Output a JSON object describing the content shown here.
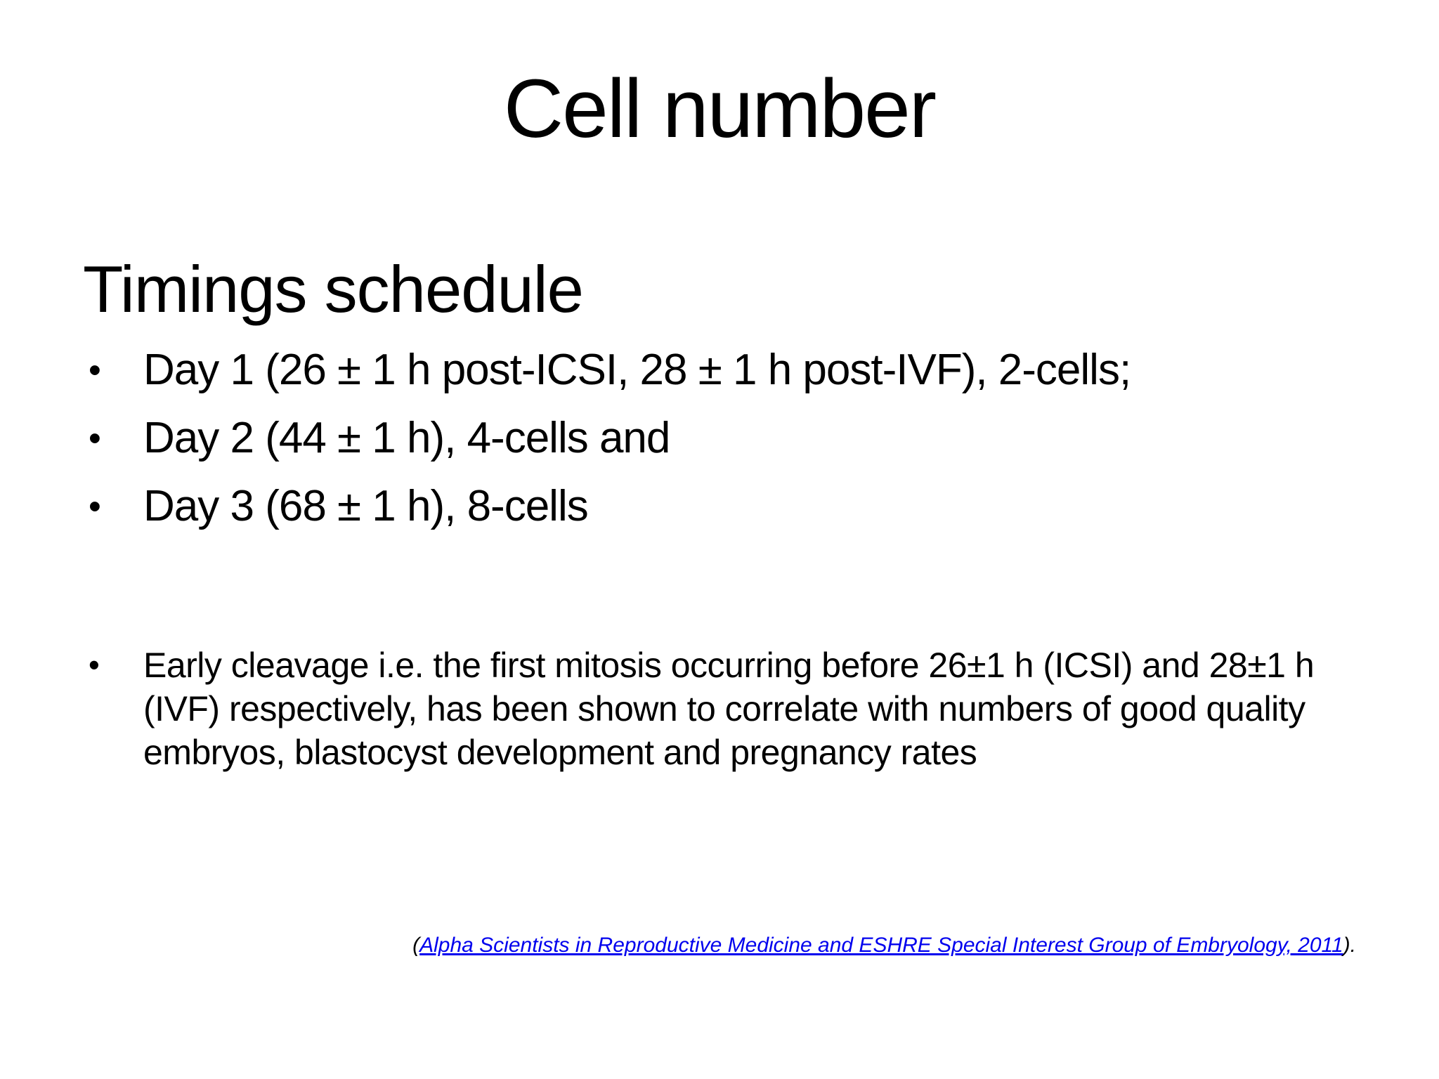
{
  "slide": {
    "title": "Cell number",
    "section_heading": "Timings schedule",
    "timing_bullets": [
      "Day 1 (26 ± 1 h post-ICSI, 28 ± 1 h post-IVF), 2-cells;",
      "Day 2 (44 ± 1 h), 4-cells and",
      "Day 3 (68 ± 1 h), 8-cells"
    ],
    "note_bullet": "Early cleavage i.e. the first mitosis occurring before 26±1 h (ICSI) and 28±1 h (IVF) respectively, has been shown to correlate with numbers of good quality embryos, blastocyst development and pregnancy rates",
    "citation": {
      "open": "(",
      "link": "Alpha Scientists in Reproductive Medicine and ESHRE Special Interest Group of Embryology, 2011",
      "close": ")."
    },
    "colors": {
      "background": "#FFFFFF",
      "text": "#000000",
      "link": "#0000EE"
    }
  }
}
